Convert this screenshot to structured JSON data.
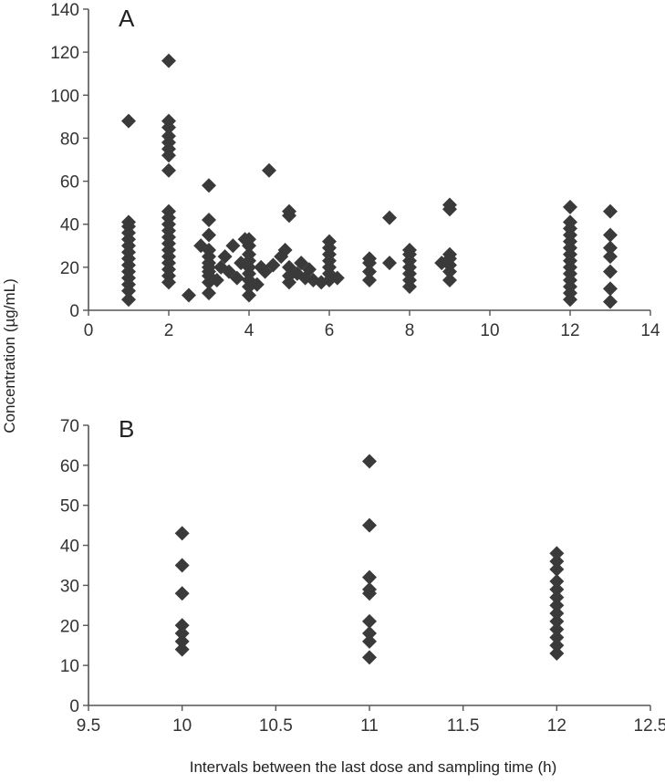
{
  "figure": {
    "ylabel": "Concentration (µg/mL)",
    "xlabel": "Intervals between the last dose and sampling time (h)"
  },
  "chart_data": [
    {
      "type": "scatter",
      "panel_label": "A",
      "marker": "diamond",
      "color": "#3a3a3a",
      "xlim": [
        0,
        14
      ],
      "ylim": [
        0,
        140
      ],
      "xticks": [
        "0",
        "2",
        "4",
        "6",
        "8",
        "10",
        "12",
        "14"
      ],
      "yticks": [
        "0",
        "20",
        "40",
        "60",
        "80",
        "100",
        "120",
        "140"
      ],
      "xtick_values": [
        0,
        2,
        4,
        6,
        8,
        10,
        12,
        14
      ],
      "ytick_values": [
        0,
        20,
        40,
        60,
        80,
        100,
        120,
        140
      ],
      "points": [
        [
          1,
          5
        ],
        [
          1,
          9
        ],
        [
          1,
          12
        ],
        [
          1,
          15
        ],
        [
          1,
          18
        ],
        [
          1,
          21
        ],
        [
          1,
          24
        ],
        [
          1,
          27
        ],
        [
          1,
          30
        ],
        [
          1,
          33
        ],
        [
          1,
          36
        ],
        [
          1,
          39
        ],
        [
          1,
          41
        ],
        [
          1,
          88
        ],
        [
          2,
          13
        ],
        [
          2,
          16
        ],
        [
          2,
          19
        ],
        [
          2,
          22
        ],
        [
          2,
          25
        ],
        [
          2,
          28
        ],
        [
          2,
          31
        ],
        [
          2,
          34
        ],
        [
          2,
          37
        ],
        [
          2,
          40
        ],
        [
          2,
          43
        ],
        [
          2,
          46
        ],
        [
          2,
          65
        ],
        [
          2,
          72
        ],
        [
          2,
          75
        ],
        [
          2,
          78
        ],
        [
          2,
          81
        ],
        [
          2,
          85
        ],
        [
          2,
          88
        ],
        [
          2,
          116
        ],
        [
          2.5,
          7
        ],
        [
          2.8,
          30
        ],
        [
          3,
          8
        ],
        [
          3,
          13
        ],
        [
          3,
          16
        ],
        [
          3,
          18
        ],
        [
          3,
          20
        ],
        [
          3,
          22
        ],
        [
          3,
          25
        ],
        [
          3,
          28
        ],
        [
          3,
          35
        ],
        [
          3,
          42
        ],
        [
          3,
          58
        ],
        [
          3.2,
          14
        ],
        [
          3.3,
          20
        ],
        [
          3.4,
          25
        ],
        [
          3.5,
          18
        ],
        [
          3.6,
          30
        ],
        [
          3.7,
          15
        ],
        [
          3.8,
          22
        ],
        [
          3.9,
          33
        ],
        [
          4,
          7
        ],
        [
          4,
          11
        ],
        [
          4,
          14
        ],
        [
          4,
          17
        ],
        [
          4,
          20
        ],
        [
          4,
          23
        ],
        [
          4,
          26
        ],
        [
          4,
          30
        ],
        [
          4,
          33
        ],
        [
          4.2,
          12
        ],
        [
          4.3,
          20
        ],
        [
          4.4,
          18
        ],
        [
          4.5,
          65
        ],
        [
          4.6,
          21
        ],
        [
          4.8,
          25
        ],
        [
          4.9,
          28
        ],
        [
          5,
          13
        ],
        [
          5,
          16
        ],
        [
          5,
          20
        ],
        [
          5,
          44
        ],
        [
          5,
          46
        ],
        [
          5.2,
          17
        ],
        [
          5.3,
          22
        ],
        [
          5.4,
          15
        ],
        [
          5.5,
          19
        ],
        [
          5.6,
          14
        ],
        [
          5.8,
          13
        ],
        [
          6,
          14
        ],
        [
          6,
          17
        ],
        [
          6,
          20
        ],
        [
          6,
          23
        ],
        [
          6,
          26
        ],
        [
          6,
          29
        ],
        [
          6,
          32
        ],
        [
          6.2,
          15
        ],
        [
          7,
          14
        ],
        [
          7,
          18
        ],
        [
          7,
          22
        ],
        [
          7,
          24
        ],
        [
          7.5,
          22
        ],
        [
          7.5,
          43
        ],
        [
          8,
          11
        ],
        [
          8,
          14
        ],
        [
          8,
          17
        ],
        [
          8,
          20
        ],
        [
          8,
          23
        ],
        [
          8,
          26
        ],
        [
          8,
          28
        ],
        [
          8.8,
          22
        ],
        [
          9,
          14
        ],
        [
          9,
          18
        ],
        [
          9,
          21
        ],
        [
          9,
          24
        ],
        [
          9,
          26
        ],
        [
          9,
          47
        ],
        [
          9,
          49
        ],
        [
          12,
          5
        ],
        [
          12,
          8
        ],
        [
          12,
          11
        ],
        [
          12,
          14
        ],
        [
          12,
          17
        ],
        [
          12,
          20
        ],
        [
          12,
          23
        ],
        [
          12,
          26
        ],
        [
          12,
          29
        ],
        [
          12,
          32
        ],
        [
          12,
          35
        ],
        [
          12,
          38
        ],
        [
          12,
          41
        ],
        [
          12,
          48
        ],
        [
          13,
          4
        ],
        [
          13,
          10
        ],
        [
          13,
          18
        ],
        [
          13,
          25
        ],
        [
          13,
          29
        ],
        [
          13,
          35
        ],
        [
          13,
          46
        ]
      ]
    },
    {
      "type": "scatter",
      "panel_label": "B",
      "marker": "diamond",
      "color": "#3a3a3a",
      "xlim": [
        9.5,
        12.5
      ],
      "ylim": [
        0,
        70
      ],
      "xticks": [
        "9.5",
        "10",
        "10.5",
        "11",
        "11.5",
        "12",
        "12.5"
      ],
      "yticks": [
        "0",
        "10",
        "20",
        "30",
        "40",
        "50",
        "60",
        "70"
      ],
      "xtick_values": [
        9.5,
        10,
        10.5,
        11,
        11.5,
        12,
        12.5
      ],
      "ytick_values": [
        0,
        10,
        20,
        30,
        40,
        50,
        60,
        70
      ],
      "points": [
        [
          10,
          14
        ],
        [
          10,
          16
        ],
        [
          10,
          18
        ],
        [
          10,
          20
        ],
        [
          10,
          28
        ],
        [
          10,
          35
        ],
        [
          10,
          43
        ],
        [
          11,
          12
        ],
        [
          11,
          16
        ],
        [
          11,
          18
        ],
        [
          11,
          21
        ],
        [
          11,
          28
        ],
        [
          11,
          29
        ],
        [
          11,
          32
        ],
        [
          11,
          45
        ],
        [
          11,
          61
        ],
        [
          12,
          13
        ],
        [
          12,
          15
        ],
        [
          12,
          17
        ],
        [
          12,
          19
        ],
        [
          12,
          21
        ],
        [
          12,
          23
        ],
        [
          12,
          25
        ],
        [
          12,
          27
        ],
        [
          12,
          29
        ],
        [
          12,
          31
        ],
        [
          12,
          34
        ],
        [
          12,
          36
        ],
        [
          12,
          38
        ]
      ]
    }
  ]
}
